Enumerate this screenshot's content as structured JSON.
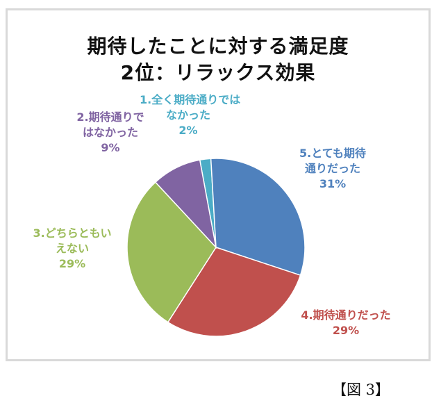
{
  "chart_data": {
    "type": "pie",
    "title_line1": "期待したことに対する満足度",
    "title_line2": "2位：リラックス効果",
    "slices": [
      {
        "id": "s1",
        "label_lines": [
          "1.全く期待通りでは",
          "なかった"
        ],
        "percent_text": "2%",
        "value": 2,
        "color": "#4bacc6"
      },
      {
        "id": "s5",
        "label_lines": [
          "5.とても期待",
          "通りだった"
        ],
        "percent_text": "31%",
        "value": 31,
        "color": "#4f81bd"
      },
      {
        "id": "s4",
        "label_lines": [
          "4.期待通りだった"
        ],
        "percent_text": "29%",
        "value": 29,
        "color": "#c0504d"
      },
      {
        "id": "s3",
        "label_lines": [
          "3.どちらともい",
          "えない"
        ],
        "percent_text": "29%",
        "value": 29,
        "color": "#9bbb59"
      },
      {
        "id": "s2",
        "label_lines": [
          "2.期待通りで",
          "はなかった"
        ],
        "percent_text": "9%",
        "value": 9,
        "color": "#8064a2"
      }
    ]
  },
  "figure_caption": "【図 3】"
}
